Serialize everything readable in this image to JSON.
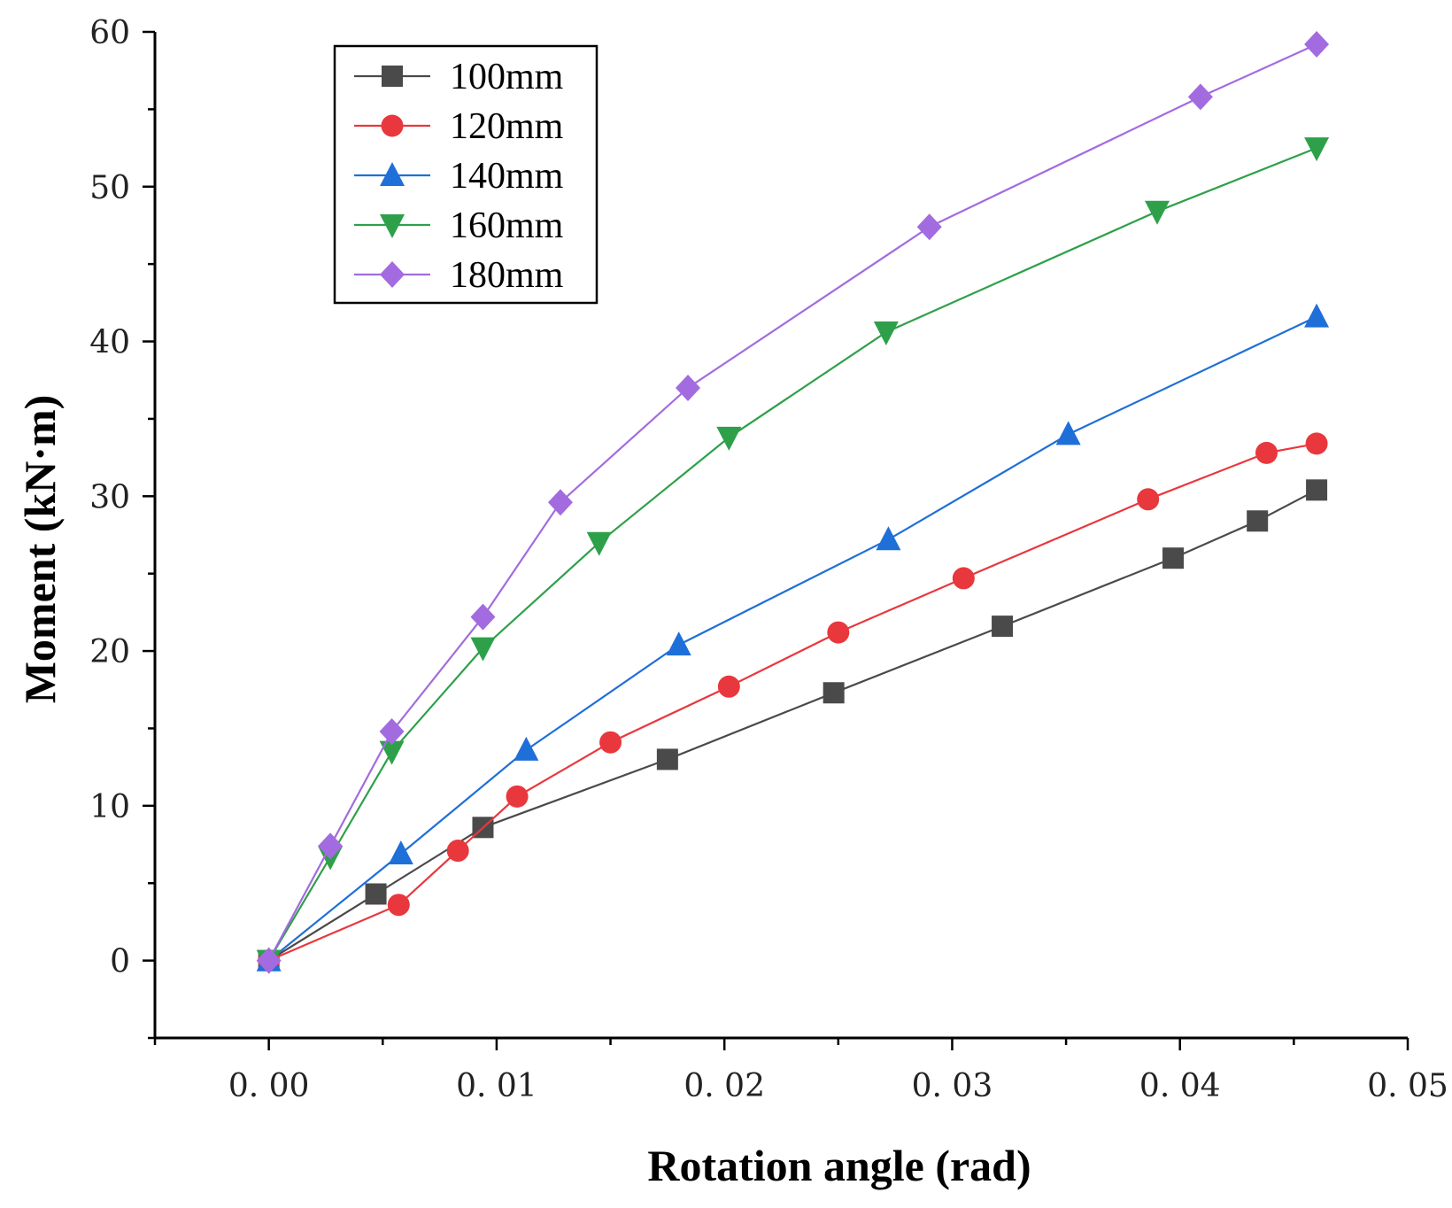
{
  "chart_data": {
    "type": "line",
    "title": "",
    "xlabel": "Rotation angle (rad)",
    "ylabel": "Moment (kN·m)",
    "xlim": [
      -0.005,
      0.05
    ],
    "ylim": [
      -5,
      60
    ],
    "xticks": [
      0.0,
      0.01,
      0.02,
      0.03,
      0.04,
      0.05
    ],
    "xtick_labels": [
      "0. 00",
      "0. 01",
      "0. 02",
      "0. 03",
      "0. 04",
      "0. 05"
    ],
    "yticks": [
      0,
      10,
      20,
      30,
      40,
      50,
      60
    ],
    "ytick_labels": [
      "0",
      "10",
      "20",
      "30",
      "40",
      "50",
      "60"
    ],
    "grid": false,
    "legend_position": "top-left",
    "series": [
      {
        "name": "100mm",
        "color": "#4a4a4a",
        "marker": "square",
        "x": [
          0.0,
          0.0047,
          0.0094,
          0.0175,
          0.0248,
          0.0322,
          0.0397,
          0.0434,
          0.046
        ],
        "y": [
          0.0,
          4.3,
          8.6,
          13.0,
          17.3,
          21.6,
          26.0,
          28.4,
          30.4
        ]
      },
      {
        "name": "120mm",
        "color": "#e8383d",
        "marker": "circle",
        "x": [
          0.0,
          0.0057,
          0.0083,
          0.0109,
          0.015,
          0.0202,
          0.025,
          0.0305,
          0.0386,
          0.0438,
          0.046
        ],
        "y": [
          0.0,
          3.6,
          7.1,
          10.6,
          14.1,
          17.7,
          21.2,
          24.7,
          29.8,
          32.8,
          33.4
        ]
      },
      {
        "name": "140mm",
        "color": "#1f6fd8",
        "marker": "triangle-up",
        "x": [
          0.0,
          0.0058,
          0.0113,
          0.018,
          0.0272,
          0.0351,
          0.046
        ],
        "y": [
          0.0,
          6.9,
          13.6,
          20.4,
          27.2,
          34.0,
          41.6
        ]
      },
      {
        "name": "160mm",
        "color": "#2ea04a",
        "marker": "triangle-down",
        "x": [
          0.0,
          0.0027,
          0.0054,
          0.0094,
          0.0145,
          0.0202,
          0.0271,
          0.039,
          0.046
        ],
        "y": [
          0.0,
          6.7,
          13.5,
          20.2,
          27.0,
          33.8,
          40.6,
          48.4,
          52.5
        ]
      },
      {
        "name": "180mm",
        "color": "#a36be0",
        "marker": "diamond",
        "x": [
          0.0,
          0.0027,
          0.0054,
          0.0094,
          0.0128,
          0.0184,
          0.029,
          0.0409,
          0.046
        ],
        "y": [
          0.0,
          7.4,
          14.8,
          22.2,
          29.6,
          37.0,
          47.4,
          55.8,
          59.2
        ]
      }
    ]
  }
}
